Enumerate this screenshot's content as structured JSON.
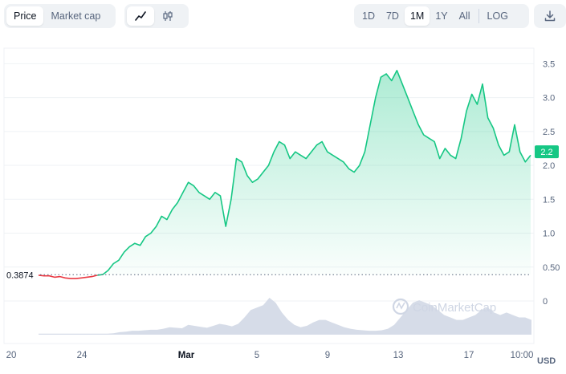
{
  "toolbar": {
    "metric_tabs": [
      {
        "label": "Price",
        "active": true
      },
      {
        "label": "Market cap",
        "active": false
      }
    ],
    "chart_types": [
      {
        "icon": "line-chart-icon",
        "active": true
      },
      {
        "icon": "candlestick-icon",
        "active": false
      }
    ],
    "ranges": [
      {
        "label": "1D",
        "active": false
      },
      {
        "label": "7D",
        "active": false
      },
      {
        "label": "1M",
        "active": true
      },
      {
        "label": "1Y",
        "active": false
      },
      {
        "label": "All",
        "active": false
      }
    ],
    "log_label": "LOG",
    "download_icon": "download-icon"
  },
  "watermark": "CoinMarketCap",
  "currency_label": "USD",
  "colors": {
    "up": "#16c784",
    "down": "#ea3943",
    "volume": "#cfd6e4",
    "grid": "#eff2f5",
    "text": "#58667e"
  },
  "chart_data": {
    "type": "line",
    "title": "",
    "x_ticks": [
      "20",
      "24",
      "Mar",
      "5",
      "9",
      "13",
      "17",
      "10:00"
    ],
    "y_ticks": [
      "0",
      "0.50",
      "1.0",
      "1.5",
      "2.0",
      "2.5",
      "3.0",
      "3.5"
    ],
    "ylim": [
      0,
      3.8
    ],
    "reference_price": 0.3874,
    "reference_label": "0.3874",
    "current_price": 2.2,
    "current_label": "2.2",
    "grid": true,
    "price_series": [
      0.38,
      0.37,
      0.37,
      0.35,
      0.36,
      0.34,
      0.33,
      0.33,
      0.34,
      0.35,
      0.36,
      0.38,
      0.39,
      0.45,
      0.55,
      0.6,
      0.72,
      0.8,
      0.85,
      0.82,
      0.95,
      1.0,
      1.1,
      1.25,
      1.2,
      1.35,
      1.45,
      1.6,
      1.75,
      1.7,
      1.6,
      1.55,
      1.5,
      1.6,
      1.55,
      1.1,
      1.5,
      2.1,
      2.05,
      1.85,
      1.75,
      1.8,
      1.9,
      2.0,
      2.2,
      2.35,
      2.3,
      2.1,
      2.2,
      2.15,
      2.1,
      2.2,
      2.3,
      2.35,
      2.2,
      2.15,
      2.1,
      2.05,
      1.95,
      1.9,
      2.0,
      2.2,
      2.6,
      3.0,
      3.3,
      3.35,
      3.25,
      3.4,
      3.2,
      3.0,
      2.8,
      2.6,
      2.45,
      2.4,
      2.35,
      2.1,
      2.25,
      2.15,
      2.1,
      2.4,
      2.8,
      3.05,
      2.9,
      3.2,
      2.7,
      2.55,
      2.3,
      2.15,
      2.2,
      2.6,
      2.2,
      2.05,
      2.15
    ],
    "volume_series": [
      0.2,
      0.2,
      0.2,
      0.2,
      0.2,
      0.2,
      0.2,
      0.2,
      0.2,
      0.2,
      0.2,
      0.2,
      0.3,
      0.5,
      0.6,
      0.8,
      0.8,
      0.9,
      1.0,
      1.0,
      1.2,
      1.5,
      1.4,
      1.3,
      2.0,
      1.8,
      1.6,
      1.4,
      1.8,
      2.2,
      2.0,
      1.7,
      2.2,
      3.5,
      5.0,
      5.5,
      6.0,
      7.5,
      6.5,
      4.5,
      3.0,
      2.0,
      1.5,
      1.8,
      2.5,
      3.0,
      3.0,
      2.5,
      2.0,
      1.5,
      1.2,
      1.0,
      0.9,
      0.8,
      0.8,
      0.9,
      1.2,
      2.0,
      3.5,
      5.0,
      6.5,
      7.0,
      6.5,
      6.0,
      5.0,
      4.0,
      3.5,
      3.0,
      3.0,
      3.5,
      4.0,
      5.0,
      5.5,
      4.5,
      4.0,
      4.5,
      4.0,
      3.5,
      3.5,
      3.0
    ]
  }
}
